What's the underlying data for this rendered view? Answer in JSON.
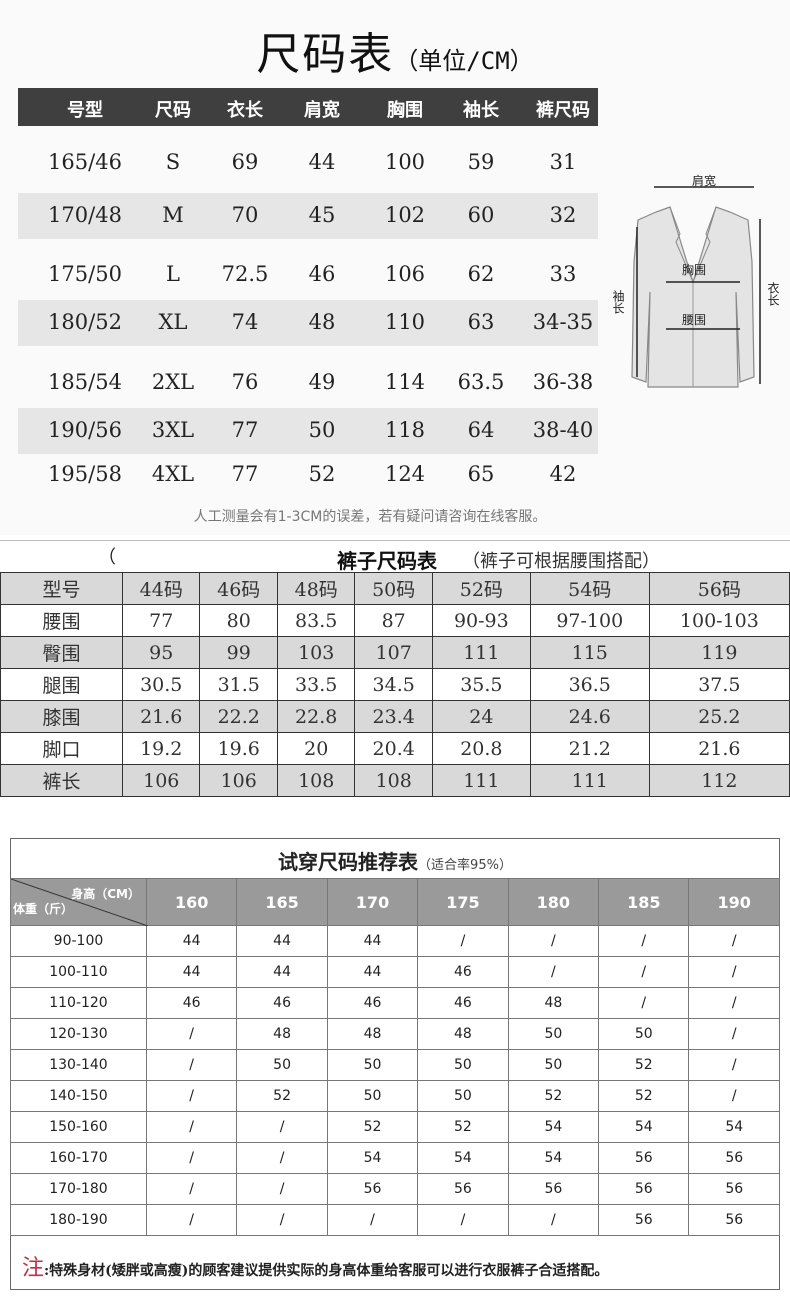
{
  "top_chart": {
    "title": "尺码表",
    "unit": "（单位/CM）",
    "headers": [
      "号型",
      "尺码",
      "衣长",
      "肩宽",
      "胸围",
      "袖长",
      "裤尺码"
    ],
    "rows": [
      [
        "165/46",
        "S",
        "69",
        "44",
        "100",
        "59",
        "31"
      ],
      [
        "170/48",
        "M",
        "70",
        "45",
        "102",
        "60",
        "32"
      ],
      [
        "175/50",
        "L",
        "72.5",
        "46",
        "106",
        "62",
        "33"
      ],
      [
        "180/52",
        "XL",
        "74",
        "48",
        "110",
        "63",
        "34-35"
      ],
      [
        "185/54",
        "2XL",
        "76",
        "49",
        "114",
        "63.5",
        "36-38"
      ],
      [
        "190/56",
        "3XL",
        "77",
        "50",
        "118",
        "64",
        "38-40"
      ],
      [
        "195/58",
        "4XL",
        "77",
        "52",
        "124",
        "65",
        "42"
      ]
    ],
    "diagram_labels": {
      "shoulder": "肩宽",
      "chest": "胸围",
      "waist": "腰围",
      "sleeve": "袖长",
      "length": "衣长"
    },
    "note": "人工测量会有1-3CM的误差，若有疑问请咨询在线客服。"
  },
  "pants_chart": {
    "paren": "（",
    "title": "裤子尺码表",
    "subtitle": "（裤子可根据腰围搭配）",
    "rows": [
      [
        "型号",
        "44码",
        "46码",
        "48码",
        "50码",
        "52码",
        "54码",
        "56码"
      ],
      [
        "腰围",
        "77",
        "80",
        "83.5",
        "87",
        "90-93",
        "97-100",
        "100-103"
      ],
      [
        "臀围",
        "95",
        "99",
        "103",
        "107",
        "111",
        "115",
        "119"
      ],
      [
        "腿围",
        "30.5",
        "31.5",
        "33.5",
        "34.5",
        "35.5",
        "36.5",
        "37.5"
      ],
      [
        "膝围",
        "21.6",
        "22.2",
        "22.8",
        "23.4",
        "24",
        "24.6",
        "25.2"
      ],
      [
        "脚口",
        "19.2",
        "19.6",
        "20",
        "20.4",
        "20.8",
        "21.2",
        "21.6"
      ],
      [
        "裤长",
        "106",
        "106",
        "108",
        "108",
        "111",
        "111",
        "112"
      ]
    ]
  },
  "recommend_chart": {
    "title": "试穿尺码推荐表",
    "subtitle": "（适合率95%）",
    "corner_top": "身高（CM）",
    "corner_bottom": "体重（斤）",
    "heights": [
      "160",
      "165",
      "170",
      "175",
      "180",
      "185",
      "190"
    ],
    "rows": [
      [
        "90-100",
        "44",
        "44",
        "44",
        "/",
        "/",
        "/",
        "/"
      ],
      [
        "100-110",
        "44",
        "44",
        "44",
        "46",
        "/",
        "/",
        "/"
      ],
      [
        "110-120",
        "46",
        "46",
        "46",
        "46",
        "48",
        "/",
        "/"
      ],
      [
        "120-130",
        "/",
        "48",
        "48",
        "48",
        "50",
        "50",
        "/"
      ],
      [
        "130-140",
        "/",
        "50",
        "50",
        "50",
        "50",
        "52",
        "/"
      ],
      [
        "140-150",
        "/",
        "52",
        "50",
        "50",
        "52",
        "52",
        "/"
      ],
      [
        "150-160",
        "/",
        "/",
        "52",
        "52",
        "54",
        "54",
        "54"
      ],
      [
        "160-170",
        "/",
        "/",
        "54",
        "54",
        "54",
        "56",
        "56"
      ],
      [
        "170-180",
        "/",
        "/",
        "56",
        "56",
        "56",
        "56",
        "56"
      ],
      [
        "180-190",
        "/",
        "/",
        "/",
        "/",
        "/",
        "56",
        "56"
      ]
    ],
    "note_label": "注",
    "note": ":特殊身材(矮胖或高瘦)的顾客建议提供实际的身高体重给客服可以进行衣服裤子合适搭配。",
    "note_color": "#c0304a"
  }
}
